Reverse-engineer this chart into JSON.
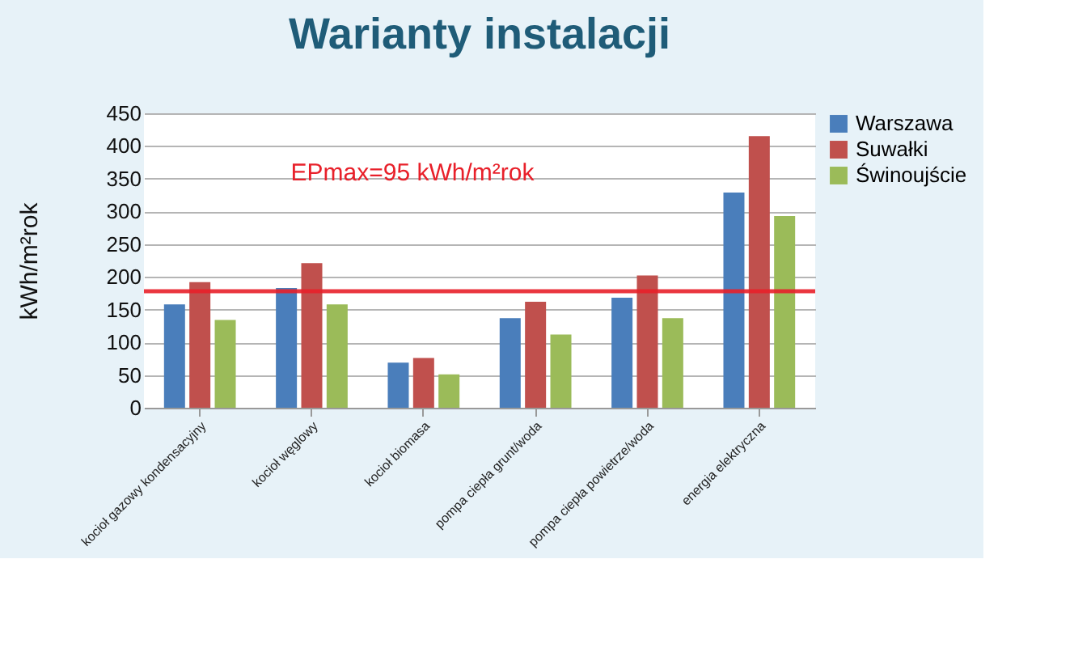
{
  "chart_data": {
    "type": "bar",
    "title": "Warianty instalacji",
    "ylabel": "kWh/m²rok",
    "categories": [
      "kocioł gazowy kondensacyjny",
      "kocioł węglowy",
      "kocioł biomasa",
      "pompa ciepła grunt/woda",
      "pompa ciepła powietrze/woda",
      "energia elektryczna"
    ],
    "series": [
      {
        "name": "Warszawa",
        "color": "#4a7ebb",
        "values": [
          158,
          183,
          69,
          137,
          168,
          329
        ]
      },
      {
        "name": "Suwałki",
        "color": "#c0504d",
        "values": [
          192,
          221,
          76,
          162,
          202,
          415
        ]
      },
      {
        "name": "Świnoujście",
        "color": "#9bbb59",
        "values": [
          134,
          158,
          51,
          112,
          137,
          293
        ]
      }
    ],
    "ylim": [
      0,
      450
    ],
    "yticks": [
      0,
      50,
      100,
      150,
      200,
      250,
      300,
      350,
      400,
      450
    ],
    "grid": "y",
    "legend": "right",
    "annotations": [
      "EPmax=95 kWh/m²rok"
    ],
    "ref_lines": [
      {
        "axis": "y",
        "value": 178,
        "color": "#e8202a"
      }
    ]
  }
}
